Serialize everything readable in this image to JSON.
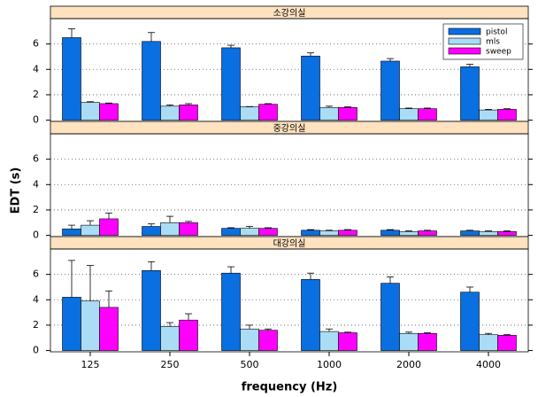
{
  "chart_data": {
    "type": "bar",
    "ylabel": "EDT (s)",
    "xlabel": "frequency (Hz)",
    "categories": [
      "125",
      "250",
      "500",
      "1000",
      "2000",
      "4000"
    ],
    "ylim": [
      -0.1,
      8.0
    ],
    "yticks": [
      0,
      2,
      4,
      6
    ],
    "grid": true,
    "legend": "upper right",
    "series": [
      {
        "name": "pistol",
        "color": "#0a6fe0"
      },
      {
        "name": "mls",
        "color": "#aadcf5"
      },
      {
        "name": "sweep",
        "color": "#ff00ff"
      }
    ],
    "panels": [
      {
        "title": "소강의실",
        "values": [
          [
            6.5,
            6.2,
            5.7,
            5.05,
            4.65,
            4.2
          ],
          [
            1.4,
            1.1,
            1.05,
            1.0,
            0.9,
            0.8
          ],
          [
            1.3,
            1.2,
            1.25,
            1.0,
            0.9,
            0.85
          ]
        ],
        "errors": [
          [
            0.7,
            0.7,
            0.2,
            0.25,
            0.2,
            0.2
          ],
          [
            0.05,
            0.1,
            0.02,
            0.1,
            0.05,
            0.05
          ],
          [
            0.05,
            0.1,
            0.05,
            0.05,
            0.05,
            0.05
          ]
        ]
      },
      {
        "title": "중강의실",
        "values": [
          [
            0.5,
            0.7,
            0.55,
            0.4,
            0.4,
            0.35
          ],
          [
            0.8,
            1.0,
            0.55,
            0.35,
            0.3,
            0.3
          ],
          [
            1.3,
            1.0,
            0.55,
            0.4,
            0.35,
            0.3
          ]
        ],
        "errors": [
          [
            0.3,
            0.2,
            0.05,
            0.05,
            0.05,
            0.05
          ],
          [
            0.35,
            0.5,
            0.15,
            0.05,
            0.05,
            0.05
          ],
          [
            0.45,
            0.1,
            0.05,
            0.05,
            0.05,
            0.05
          ]
        ]
      },
      {
        "title": "대강의실",
        "values": [
          [
            4.2,
            6.3,
            6.1,
            5.6,
            5.3,
            4.6
          ],
          [
            3.9,
            1.9,
            1.7,
            1.5,
            1.35,
            1.25
          ],
          [
            3.4,
            2.4,
            1.6,
            1.4,
            1.35,
            1.2
          ]
        ],
        "errors": [
          [
            2.9,
            0.7,
            0.5,
            0.5,
            0.5,
            0.4
          ],
          [
            2.8,
            0.3,
            0.3,
            0.2,
            0.1,
            0.1
          ],
          [
            1.3,
            0.5,
            0.1,
            0.05,
            0.05,
            0.05
          ]
        ]
      }
    ]
  }
}
